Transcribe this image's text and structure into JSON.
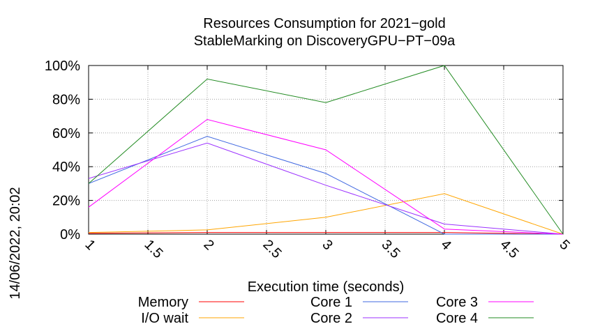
{
  "chart_data": {
    "type": "line",
    "title": "Resources Consumption for 2021−gold",
    "subtitle": "StableMarking on DiscoveryGPU−PT−09a",
    "xlabel": "Execution time (seconds)",
    "ylabel": "",
    "side_label": "14/06/2022, 20:02",
    "xlim": [
      1,
      5
    ],
    "ylim": [
      0,
      100
    ],
    "x_ticks": [
      "1",
      "1.5",
      "2",
      "2.5",
      "3",
      "3.5",
      "4",
      "4.5",
      "5"
    ],
    "y_ticks": [
      "0%",
      "20%",
      "40%",
      "60%",
      "80%",
      "100%"
    ],
    "grid": true,
    "legend_position": "bottom",
    "series": [
      {
        "name": "Memory",
        "color": "#ff0000",
        "x": [
          1,
          2,
          3,
          4,
          5
        ],
        "y": [
          0.5,
          1,
          1,
          1,
          0
        ]
      },
      {
        "name": "I/O wait",
        "color": "#ffa500",
        "x": [
          1,
          2,
          3,
          4,
          5
        ],
        "y": [
          1,
          2.5,
          10,
          24,
          0
        ]
      },
      {
        "name": "Core 1",
        "color": "#4169e1",
        "x": [
          1,
          2,
          3,
          4,
          5
        ],
        "y": [
          30,
          58,
          36,
          0,
          0
        ]
      },
      {
        "name": "Core 2",
        "color": "#9b30ff",
        "x": [
          1,
          2,
          3,
          4,
          5
        ],
        "y": [
          33,
          54,
          29,
          6,
          0
        ]
      },
      {
        "name": "Core 3",
        "color": "#ff00ff",
        "x": [
          1,
          2,
          3,
          4,
          5
        ],
        "y": [
          16,
          68,
          50,
          3,
          0
        ]
      },
      {
        "name": "Core 4",
        "color": "#228b22",
        "x": [
          1,
          2,
          3,
          4,
          5
        ],
        "y": [
          30,
          92,
          78,
          100,
          0
        ]
      }
    ]
  }
}
